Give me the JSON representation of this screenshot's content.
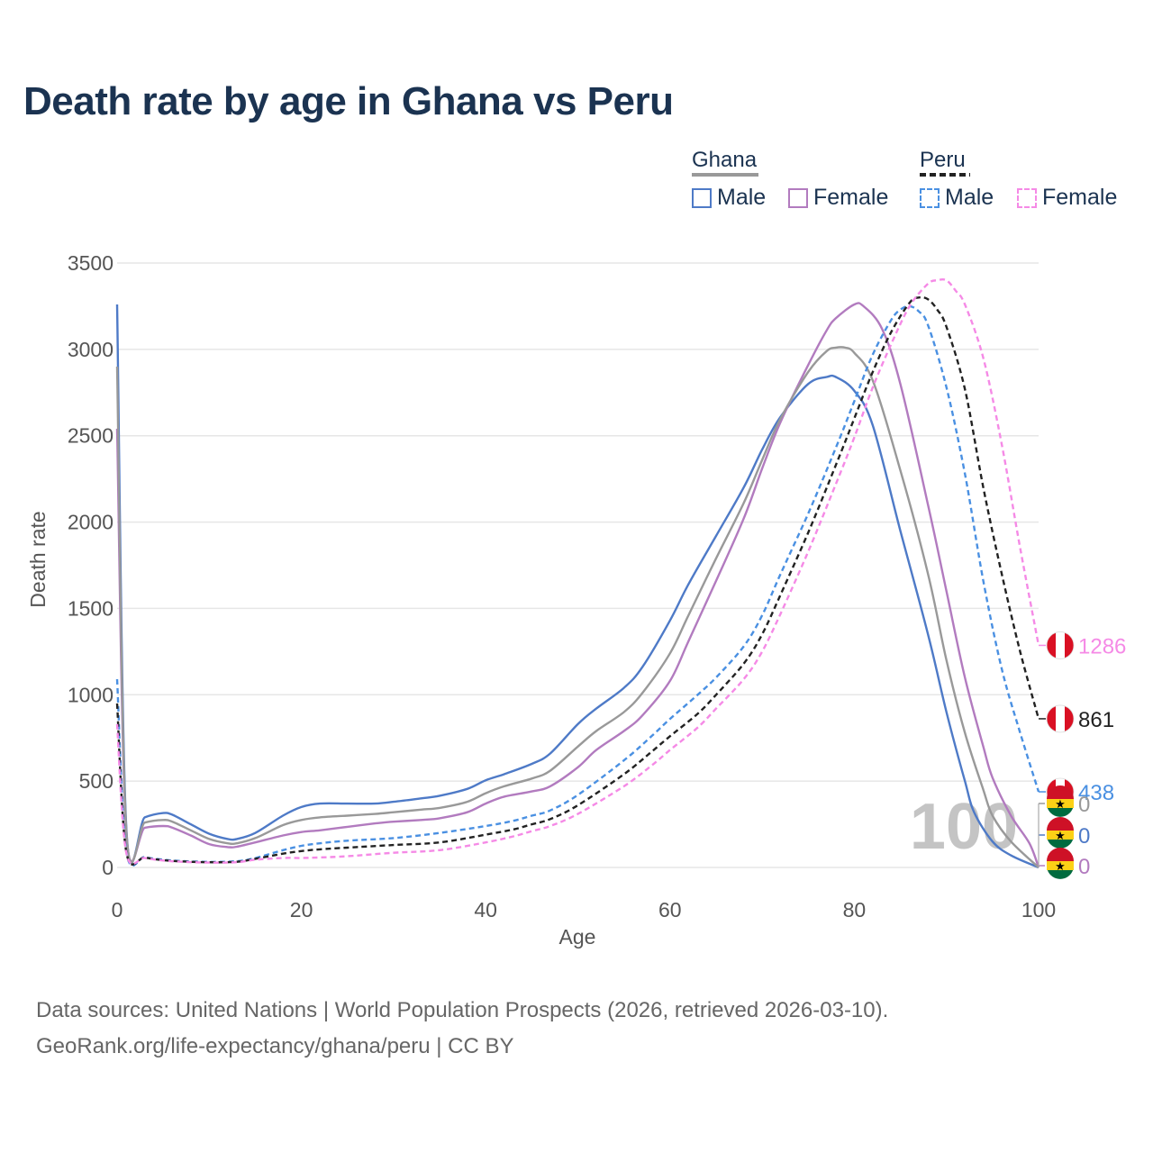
{
  "title": "Death rate by age in Ghana vs Peru",
  "legend": {
    "groups": [
      {
        "name": "Ghana",
        "color": "#999999",
        "dashed": false,
        "items": [
          {
            "label": "Male",
            "color": "#4e7ac7"
          },
          {
            "label": "Female",
            "color": "#b27bbf"
          }
        ]
      },
      {
        "name": "Peru",
        "color": "#222222",
        "dashed": true,
        "items": [
          {
            "label": "Male",
            "color": "#4a90e2"
          },
          {
            "label": "Female",
            "color": "#f58ae6"
          }
        ]
      }
    ]
  },
  "footer": {
    "line1": "Data sources: United Nations | World Population Prospects (2026, retrieved 2026-03-10).",
    "line2": "GeoRank.org/life-expectancy/ghana/peru | CC BY"
  },
  "watermark": "100",
  "chart_data": {
    "type": "line",
    "xlabel": "Age",
    "ylabel": "Death rate",
    "xlim": [
      0,
      100
    ],
    "ylim": [
      0,
      3500
    ],
    "xticks": [
      0,
      20,
      40,
      60,
      80,
      100
    ],
    "yticks": [
      0,
      500,
      1000,
      1500,
      2000,
      2500,
      3000,
      3500
    ],
    "grid": true,
    "series": [
      {
        "name": "Ghana Male",
        "country": "Ghana",
        "sex": "Male",
        "color": "#4e7ac7",
        "dashed": false,
        "end_value": "0",
        "x": [
          0,
          1,
          3,
          5,
          6,
          8,
          10,
          12,
          13,
          15,
          18,
          20,
          22,
          25,
          28,
          30,
          33,
          35,
          38,
          40,
          42,
          45,
          47,
          50,
          52,
          55,
          57,
          60,
          62,
          65,
          68,
          70,
          72,
          75,
          77,
          78,
          80,
          82,
          85,
          88,
          90,
          92,
          93,
          95,
          97,
          100
        ],
        "y": [
          3260,
          235,
          290,
          315,
          305,
          250,
          195,
          165,
          165,
          200,
          300,
          350,
          370,
          370,
          370,
          380,
          400,
          415,
          455,
          505,
          540,
          600,
          660,
          830,
          920,
          1040,
          1160,
          1430,
          1640,
          1920,
          2200,
          2420,
          2610,
          2800,
          2840,
          2840,
          2760,
          2560,
          1950,
          1350,
          900,
          500,
          320,
          150,
          70,
          0
        ]
      },
      {
        "name": "Ghana Female",
        "country": "Ghana",
        "sex": "Female",
        "color": "#b27bbf",
        "dashed": false,
        "end_value": "0",
        "x": [
          0,
          1,
          3,
          5,
          6,
          8,
          10,
          12,
          13,
          15,
          18,
          20,
          22,
          25,
          28,
          30,
          33,
          35,
          38,
          40,
          42,
          45,
          47,
          50,
          52,
          55,
          57,
          60,
          62,
          65,
          68,
          70,
          72,
          75,
          77,
          78,
          80,
          81,
          83,
          85,
          88,
          90,
          92,
          94,
          95,
          97,
          99,
          100
        ],
        "y": [
          2540,
          200,
          230,
          240,
          230,
          185,
          135,
          118,
          120,
          145,
          185,
          205,
          215,
          235,
          255,
          265,
          275,
          285,
          320,
          370,
          410,
          440,
          470,
          580,
          680,
          790,
          880,
          1080,
          1310,
          1660,
          2020,
          2310,
          2580,
          2910,
          3110,
          3180,
          3260,
          3250,
          3120,
          2800,
          2100,
          1600,
          1100,
          700,
          520,
          300,
          140,
          0
        ]
      },
      {
        "name": "Ghana Both",
        "country": "Ghana",
        "sex": "Both",
        "color": "#999999",
        "dashed": false,
        "end_value": "0",
        "x": [
          0,
          1,
          3,
          5,
          6,
          8,
          10,
          12,
          13,
          15,
          18,
          20,
          22,
          25,
          28,
          30,
          33,
          35,
          38,
          40,
          42,
          45,
          47,
          50,
          52,
          55,
          57,
          60,
          62,
          65,
          68,
          70,
          72,
          75,
          77,
          78,
          79,
          80,
          82,
          85,
          88,
          90,
          92,
          94,
          95,
          97,
          100
        ],
        "y": [
          2900,
          215,
          260,
          275,
          265,
          215,
          165,
          140,
          140,
          170,
          245,
          275,
          290,
          300,
          310,
          320,
          335,
          345,
          380,
          430,
          470,
          515,
          560,
          700,
          790,
          900,
          1010,
          1240,
          1460,
          1790,
          2110,
          2360,
          2600,
          2870,
          2990,
          3010,
          3010,
          2980,
          2820,
          2300,
          1700,
          1200,
          780,
          450,
          300,
          150,
          0
        ]
      },
      {
        "name": "Peru Male",
        "country": "Peru",
        "sex": "Male",
        "color": "#4a90e2",
        "dashed": true,
        "end_value": "438",
        "x": [
          0,
          1,
          3,
          5,
          7,
          10,
          13,
          15,
          18,
          20,
          22,
          25,
          30,
          35,
          40,
          43,
          45,
          47,
          50,
          55,
          58,
          60,
          63,
          65,
          68,
          70,
          72,
          75,
          78,
          80,
          82,
          84,
          85,
          86,
          87,
          88,
          90,
          92,
          94,
          96,
          98,
          100
        ],
        "y": [
          1090,
          95,
          60,
          45,
          37,
          32,
          36,
          55,
          100,
          125,
          140,
          155,
          170,
          200,
          240,
          270,
          300,
          330,
          420,
          620,
          760,
          860,
          1000,
          1100,
          1280,
          1460,
          1700,
          2050,
          2430,
          2700,
          2970,
          3170,
          3230,
          3250,
          3220,
          3140,
          2780,
          2280,
          1660,
          1150,
          780,
          438
        ]
      },
      {
        "name": "Peru Both",
        "country": "Peru",
        "sex": "Both",
        "color": "#222222",
        "dashed": true,
        "end_value": "861",
        "x": [
          0,
          1,
          3,
          5,
          7,
          10,
          13,
          15,
          18,
          20,
          22,
          25,
          30,
          35,
          40,
          43,
          45,
          47,
          50,
          55,
          58,
          60,
          63,
          65,
          68,
          70,
          72,
          75,
          78,
          80,
          82,
          84,
          86,
          87,
          88,
          89,
          90,
          92,
          94,
          96,
          98,
          100
        ],
        "y": [
          950,
          90,
          58,
          42,
          35,
          30,
          33,
          50,
          80,
          95,
          105,
          115,
          130,
          145,
          190,
          220,
          250,
          280,
          360,
          540,
          670,
          760,
          890,
          1000,
          1180,
          1350,
          1580,
          1940,
          2330,
          2600,
          2870,
          3100,
          3270,
          3300,
          3290,
          3230,
          3130,
          2770,
          2200,
          1700,
          1250,
          861
        ]
      },
      {
        "name": "Peru Female",
        "country": "Peru",
        "sex": "Female",
        "color": "#f58ae6",
        "dashed": true,
        "end_value": "1286",
        "x": [
          0,
          1,
          3,
          5,
          7,
          10,
          13,
          15,
          18,
          20,
          22,
          25,
          30,
          35,
          40,
          43,
          45,
          47,
          50,
          55,
          58,
          60,
          63,
          65,
          68,
          70,
          72,
          75,
          78,
          80,
          82,
          84,
          86,
          88,
          89,
          90,
          91,
          92,
          94,
          96,
          98,
          100
        ],
        "y": [
          830,
          85,
          55,
          40,
          33,
          28,
          30,
          45,
          55,
          55,
          58,
          65,
          85,
          100,
          145,
          180,
          210,
          240,
          310,
          470,
          590,
          680,
          810,
          920,
          1090,
          1250,
          1470,
          1830,
          2220,
          2490,
          2780,
          3030,
          3250,
          3380,
          3400,
          3400,
          3340,
          3260,
          2950,
          2450,
          1850,
          1286
        ]
      }
    ]
  }
}
